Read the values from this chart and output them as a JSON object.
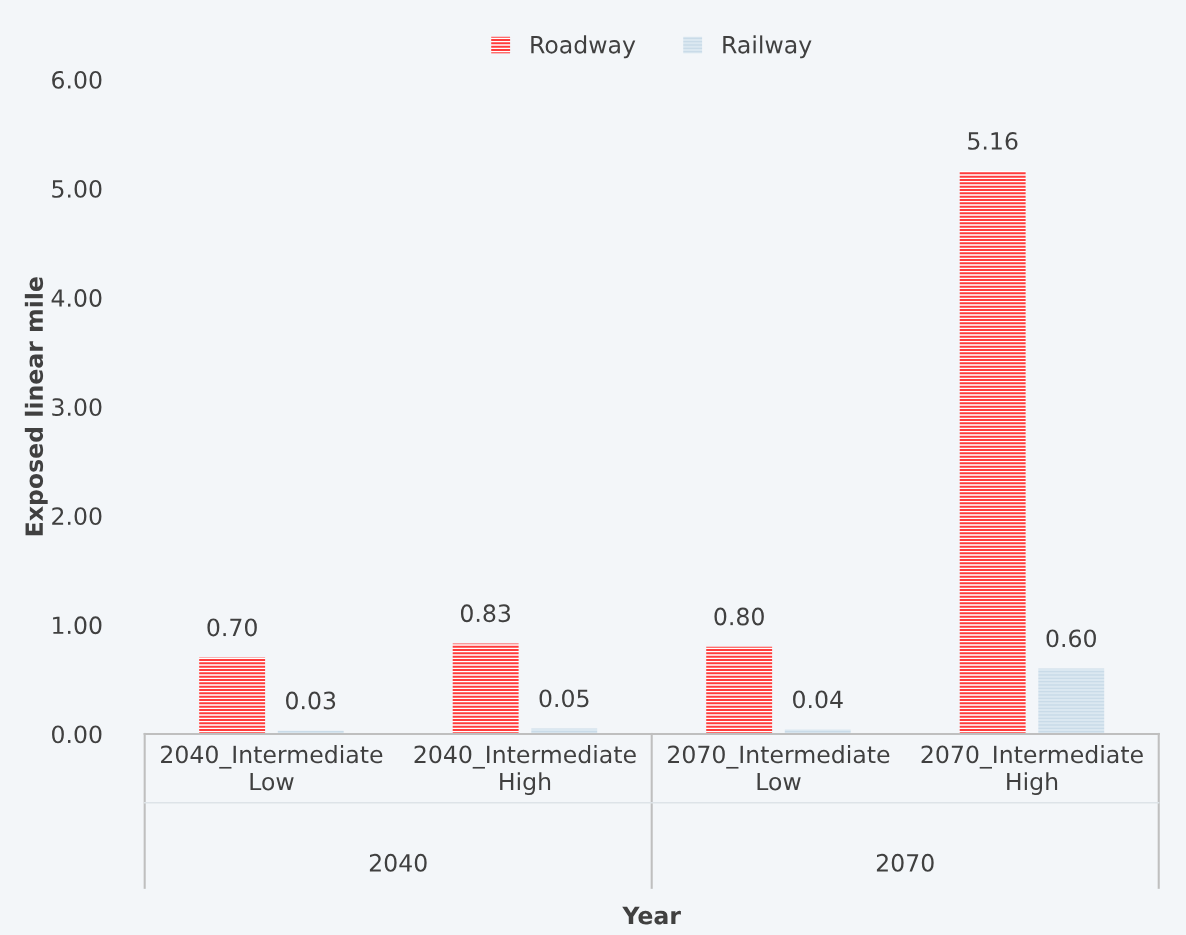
{
  "chart_data": {
    "type": "bar",
    "xlabel": "Year",
    "ylabel": "Exposed linear mile",
    "categories": [
      "2040_Intermediate\nLow",
      "2040_Intermediate\nHigh",
      "2070_Intermediate\nLow",
      "2070_Intermediate\nHigh"
    ],
    "series": [
      {
        "name": "Roadway",
        "color": "#ff3b3b",
        "values": [
          0.7,
          0.83,
          0.8,
          5.16
        ],
        "value_labels": [
          "0.70",
          "0.83",
          "0.80",
          "5.16"
        ]
      },
      {
        "name": "Railway",
        "color": "#dbe8f1",
        "values": [
          0.03,
          0.05,
          0.04,
          0.6
        ],
        "value_labels": [
          "0.03",
          "0.05",
          "0.04",
          "0.60"
        ]
      }
    ],
    "ylim": [
      0,
      6
    ],
    "yticks": [
      {
        "value": 0,
        "label": "0.00"
      },
      {
        "value": 1,
        "label": "1.00"
      },
      {
        "value": 2,
        "label": "2.00"
      },
      {
        "value": 3,
        "label": "3.00"
      },
      {
        "value": 4,
        "label": "4.00"
      },
      {
        "value": 5,
        "label": "5.00"
      },
      {
        "value": 6,
        "label": "6.00"
      }
    ],
    "annotations": [
      "2040",
      "2070"
    ],
    "legend": "top",
    "grid": false
  }
}
